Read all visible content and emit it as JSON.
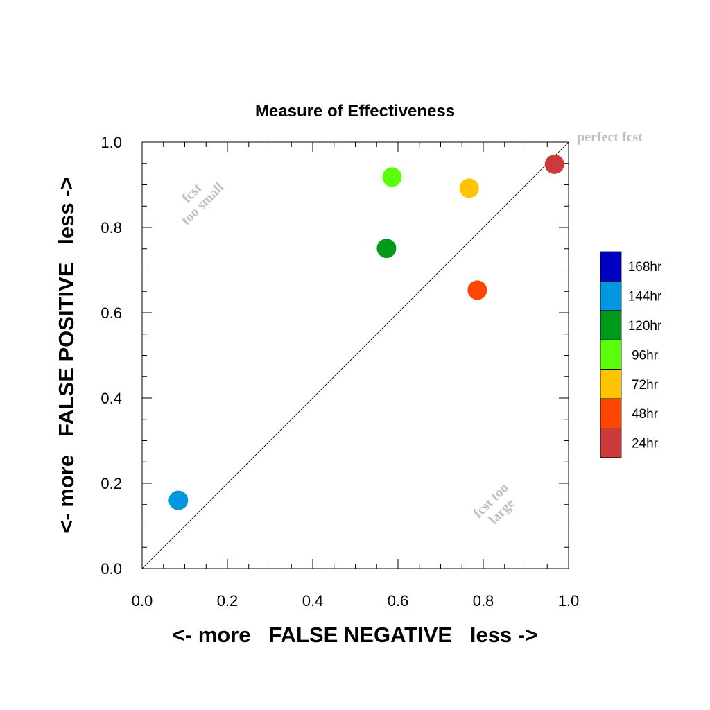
{
  "chart_data": {
    "type": "scatter",
    "title": "Measure of Effectiveness",
    "xlabel": "<- more   FALSE NEGATIVE   less ->",
    "ylabel": "<- more   FALSE POSITIVE   less ->",
    "xlim": [
      0.0,
      1.0
    ],
    "ylim": [
      0.0,
      1.0
    ],
    "xticks": [
      "0.0",
      "0.2",
      "0.4",
      "0.6",
      "0.8",
      "1.0"
    ],
    "yticks": [
      "0.0",
      "0.2",
      "0.4",
      "0.6",
      "0.8",
      "1.0"
    ],
    "grid": false,
    "diagonal_line": true,
    "legend_position": "right",
    "annotations": {
      "perfect": "perfect fcst",
      "too_small_line1": "fcst",
      "too_small_line2": "too small",
      "too_large_line1": "fcst too",
      "too_large_line2": "large"
    },
    "legend": [
      {
        "label": "168hr",
        "color": "#0000c4"
      },
      {
        "label": "144hr",
        "color": "#0096e0"
      },
      {
        "label": "120hr",
        "color": "#009a1a"
      },
      {
        "label": "96hr",
        "color": "#5cff0a"
      },
      {
        "label": "72hr",
        "color": "#ffc400"
      },
      {
        "label": "48hr",
        "color": "#ff4500"
      },
      {
        "label": "24hr",
        "color": "#cc3a3a"
      }
    ],
    "points": [
      {
        "label": "24hr",
        "x": 0.967,
        "y": 0.948,
        "color": "#cc3a3a"
      },
      {
        "label": "48hr",
        "x": 0.786,
        "y": 0.653,
        "color": "#ff4500"
      },
      {
        "label": "72hr",
        "x": 0.767,
        "y": 0.892,
        "color": "#ffc400"
      },
      {
        "label": "96hr",
        "x": 0.586,
        "y": 0.918,
        "color": "#5cff0a"
      },
      {
        "label": "120hr",
        "x": 0.573,
        "y": 0.751,
        "color": "#009a1a"
      },
      {
        "label": "144hr",
        "x": 0.085,
        "y": 0.16,
        "color": "#0096e0"
      }
    ]
  }
}
